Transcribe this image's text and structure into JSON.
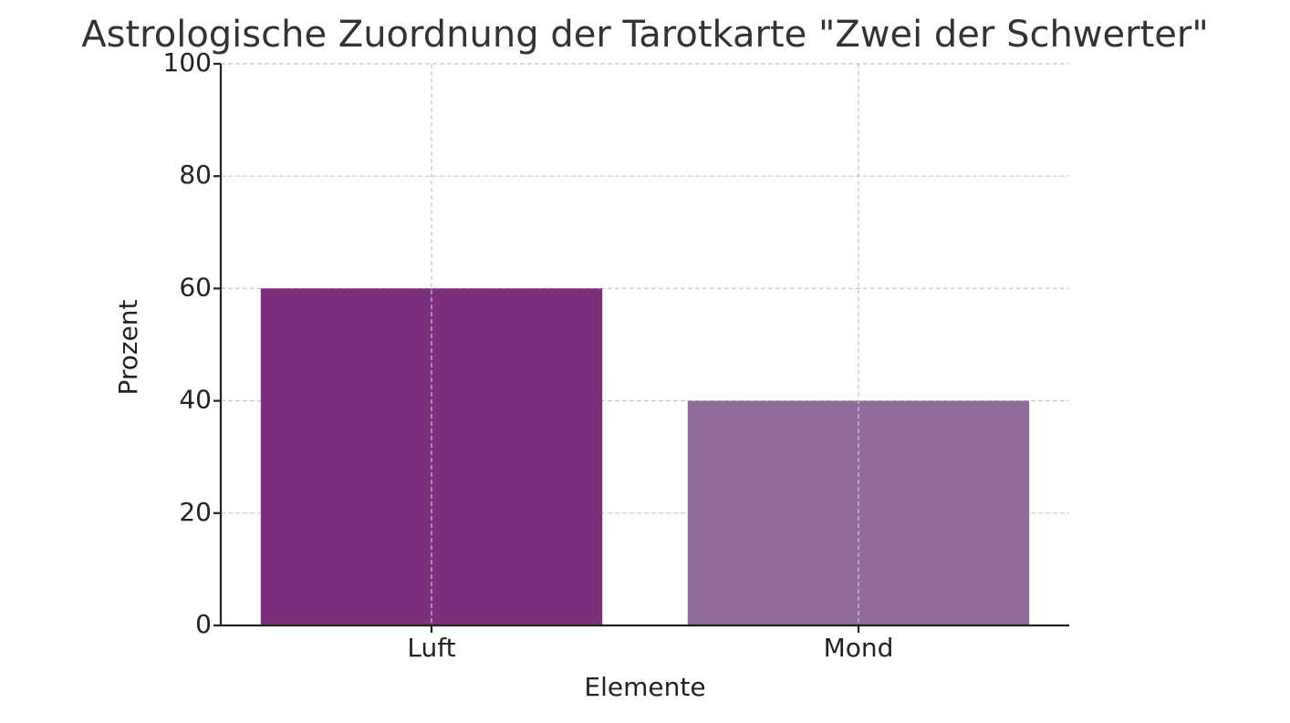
{
  "chart_data": {
    "type": "bar",
    "title": "Astrologische Zuordnung der Tarotkarte \"Zwei der Schwerter\"",
    "x_label": "Elemente",
    "y_label": "Prozent",
    "categories": [
      "Luft",
      "Mond"
    ],
    "values": [
      60,
      40
    ],
    "colors": [
      "#7b2f7c",
      "#926b9d"
    ],
    "ylim": [
      0,
      100
    ],
    "yticks": [
      0,
      20,
      40,
      60,
      80,
      100
    ],
    "grid": true
  }
}
